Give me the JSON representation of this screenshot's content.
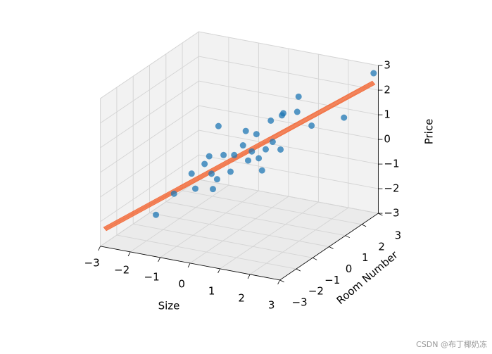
{
  "chart_data": {
    "type": "scatter3d",
    "xlabel": "Size",
    "ylabel": "Room Number",
    "zlabel": "Price",
    "xlim": [
      -3,
      3
    ],
    "ylim": [
      -3,
      3
    ],
    "zlim": [
      -3,
      3
    ],
    "xticks": [
      {
        "value": -3,
        "label": "−3"
      },
      {
        "value": -2,
        "label": "−2"
      },
      {
        "value": -1,
        "label": "−1"
      },
      0,
      1,
      2,
      3
    ],
    "yticks": [
      {
        "value": -3,
        "label": "−3"
      },
      {
        "value": -2,
        "label": "−2"
      },
      {
        "value": -1,
        "label": "−1"
      },
      0,
      1,
      2,
      3
    ],
    "zticks": [
      {
        "value": -3,
        "label": "−3"
      },
      {
        "value": -2,
        "label": "−2"
      },
      {
        "value": -1,
        "label": "−1"
      },
      0,
      1,
      2,
      3
    ],
    "grid": true,
    "series": [
      {
        "color": "#1f77b4",
        "x": [
          -1.8,
          -1.41,
          -1.03,
          -0.95,
          -0.75,
          -0.65,
          -0.57,
          -0.48,
          -0.45,
          -0.6,
          -0.34,
          -0.19,
          -0.11,
          0.08,
          0.14,
          0.19,
          0.27,
          0.37,
          0.42,
          0.49,
          0.57,
          0.68,
          0.72,
          0.89,
          0.92,
          0.95,
          1.25,
          1.28,
          1.56,
          2.26,
          2.9
        ],
        "y": [
          -1.8,
          -1.41,
          -1.03,
          -0.95,
          -0.75,
          -0.65,
          -0.57,
          -0.48,
          -0.45,
          -0.6,
          -0.34,
          -0.19,
          -0.11,
          0.08,
          0.14,
          0.19,
          0.27,
          0.37,
          0.42,
          0.49,
          0.57,
          0.68,
          0.72,
          0.89,
          0.92,
          0.95,
          1.25,
          1.28,
          1.56,
          2.26,
          2.9
        ],
        "z": [
          -1.99,
          -1.22,
          -0.49,
          -1.12,
          -0.16,
          0.13,
          -1.22,
          -0.84,
          1.31,
          -0.59,
          0.11,
          -0.6,
          0.06,
          0.41,
          0.98,
          -0.23,
          0.12,
          0.8,
          -0.19,
          -0.7,
          0.14,
          1.28,
          0.41,
          0.06,
          1.44,
          1.52,
          1.51,
          2.12,
          0.88,
          1.05,
          2.71
        ]
      }
    ],
    "surface": {
      "color": "#f26b3a",
      "x": [
        [
          -3,
          2.8
        ],
        [
          -2.8,
          3
        ]
      ],
      "y": [
        [
          -2.8,
          3
        ],
        [
          -3,
          2.8
        ]
      ],
      "z": [
        [
          -2.32,
          2.32
        ],
        [
          -2.32,
          2.32
        ]
      ]
    }
  },
  "watermark": "CSDN @布丁椰奶冻"
}
